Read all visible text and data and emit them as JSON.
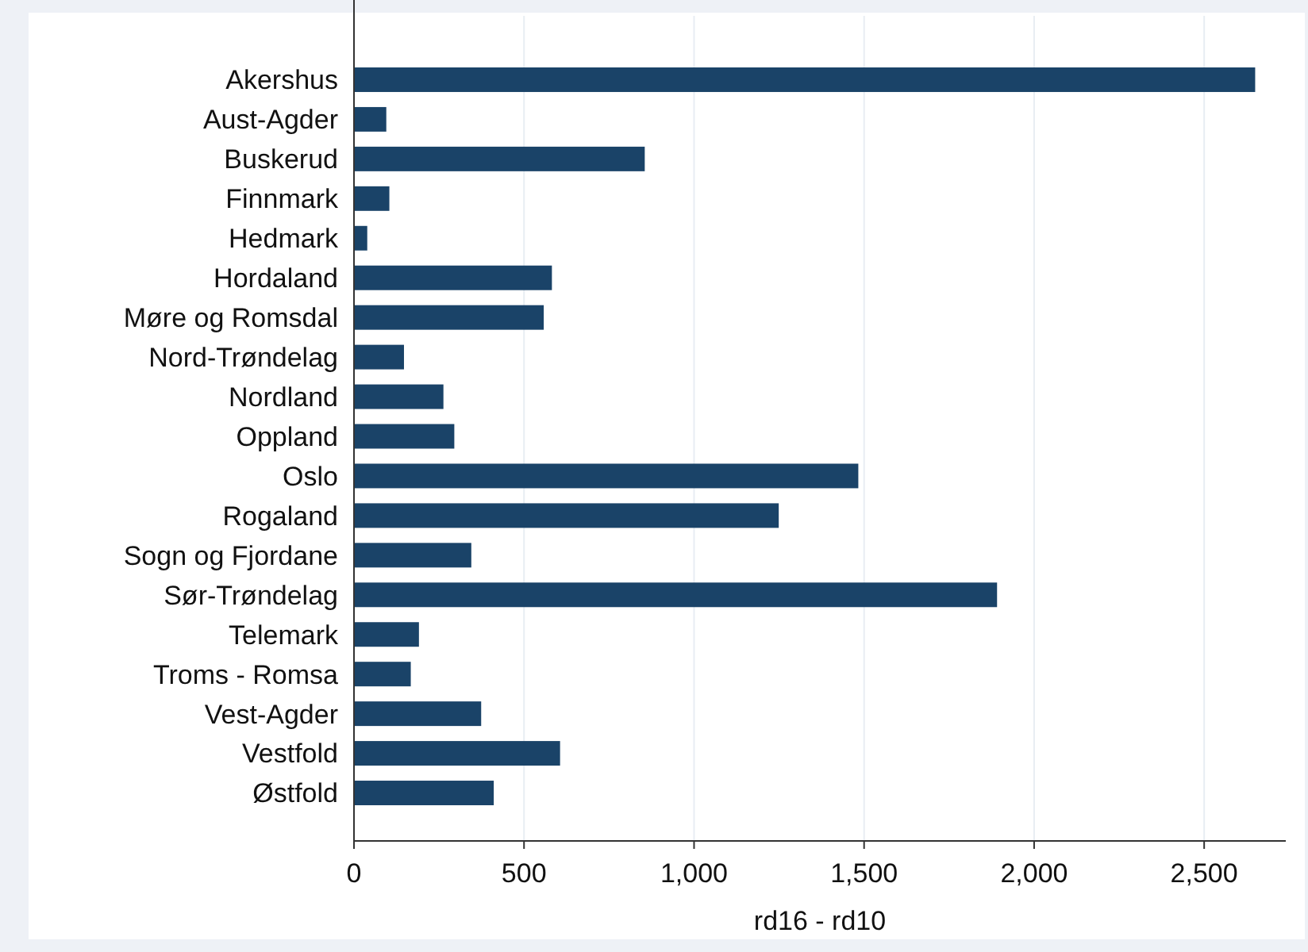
{
  "chart_data": {
    "type": "bar",
    "orientation": "horizontal",
    "xlabel": "rd16 - rd10",
    "categories": [
      "Akershus",
      "Aust-Agder",
      "Buskerud",
      "Finnmark",
      "Hedmark",
      "Hordaland",
      "Møre og Romsdal",
      "Nord-Trøndelag",
      "Nordland",
      "Oppland",
      "Oslo",
      "Rogaland",
      "Sogn og Fjordane",
      "Sør-Trøndelag",
      "Telemark",
      "Troms - Romsa",
      "Vest-Agder",
      "Vestfold",
      "Østfold"
    ],
    "values": [
      2650,
      95,
      855,
      104,
      39,
      582,
      558,
      147,
      263,
      295,
      1483,
      1249,
      345,
      1891,
      191,
      167,
      374,
      606,
      411
    ],
    "color": "#1a4368",
    "xlim": [
      0,
      2740
    ],
    "xticks": [
      0,
      {
        "value": 500,
        "label": "500"
      },
      {
        "value": 1000,
        "label": "1,000"
      },
      {
        "value": 1500,
        "label": "1,500"
      },
      {
        "value": 2000,
        "label": "2,000"
      },
      {
        "value": 2500,
        "label": "2,500"
      }
    ],
    "grid": "x"
  }
}
